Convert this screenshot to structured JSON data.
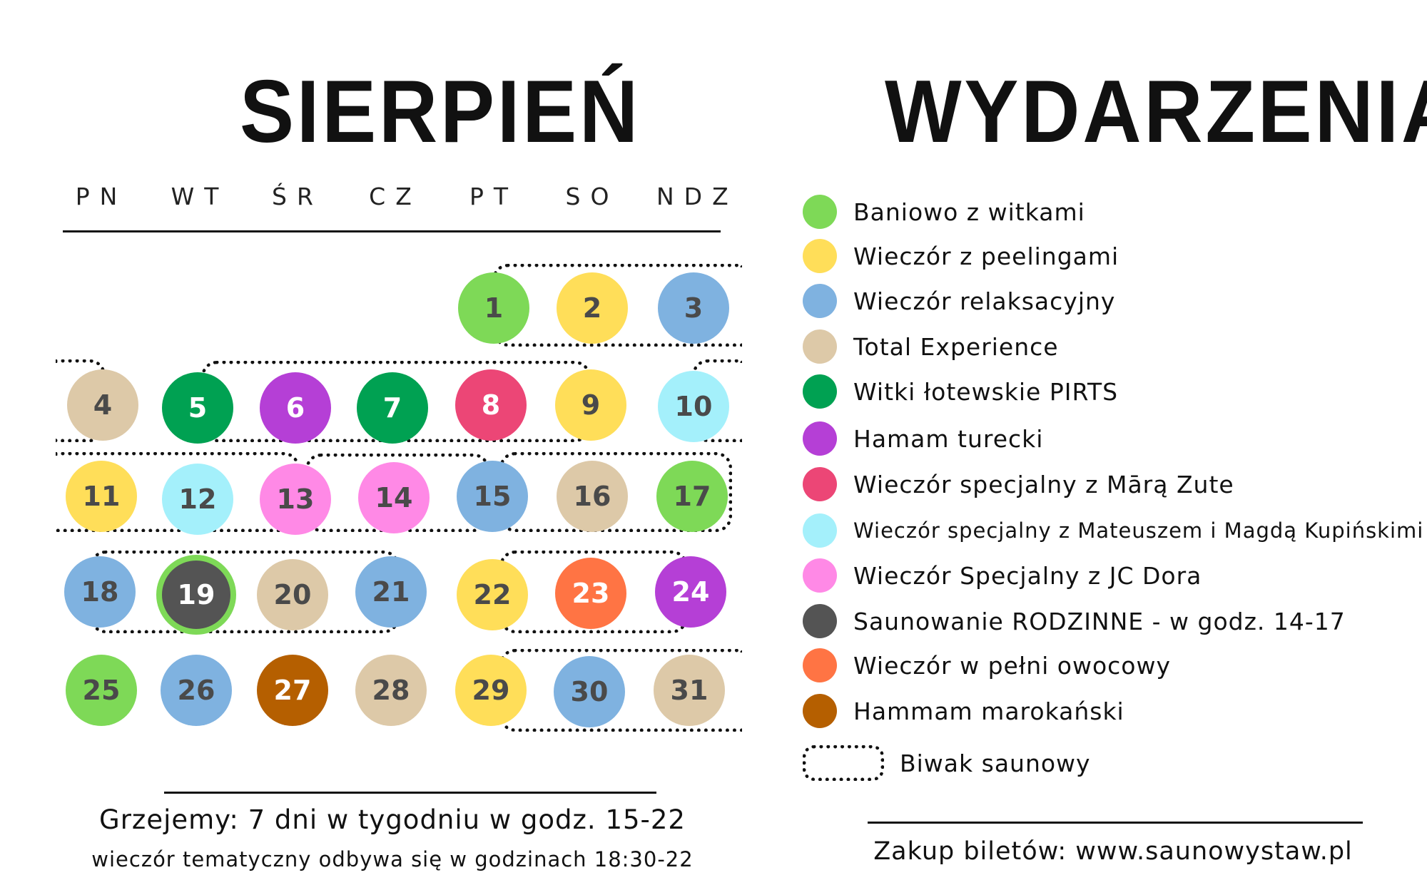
{
  "calendar": {
    "title": "SIERPIEŃ",
    "weekdays": [
      "PN",
      "WT",
      "ŚR",
      "CZ",
      "PT",
      "SO",
      "NDZ"
    ],
    "days": [
      {
        "n": "1",
        "event": "Baniowo z witkami"
      },
      {
        "n": "2",
        "event": "Wieczór z peelingami"
      },
      {
        "n": "3",
        "event": "Wieczór relaksacyjny"
      },
      {
        "n": "4",
        "event": "Total Experience"
      },
      {
        "n": "5",
        "event": "Witki łotewskie PIRTS"
      },
      {
        "n": "6",
        "event": "Hamam turecki"
      },
      {
        "n": "7",
        "event": "Witki łotewskie PIRTS"
      },
      {
        "n": "8",
        "event": "Wieczór specjalny z Mārą Zute"
      },
      {
        "n": "9",
        "event": "Wieczór z peelingami"
      },
      {
        "n": "10",
        "event": "Wieczór specjalny z Mateuszem i Magdą Kupińskimi"
      },
      {
        "n": "11",
        "event": "Wieczór z peelingami"
      },
      {
        "n": "12",
        "event": "Wieczór specjalny z Mateuszem i Magdą Kupińskimi"
      },
      {
        "n": "13",
        "event": "Wieczór Specjalny z JC Dora"
      },
      {
        "n": "14",
        "event": "Wieczór Specjalny z JC Dora"
      },
      {
        "n": "15",
        "event": "Wieczór relaksacyjny"
      },
      {
        "n": "16",
        "event": "Total Experience"
      },
      {
        "n": "17",
        "event": "Baniowo z witkami"
      },
      {
        "n": "18",
        "event": "Wieczór relaksacyjny"
      },
      {
        "n": "19",
        "event": "Saunowanie RODZINNE - w godz. 14-17",
        "ring": "Baniowo z witkami"
      },
      {
        "n": "20",
        "event": "Total Experience"
      },
      {
        "n": "21",
        "event": "Wieczór relaksacyjny"
      },
      {
        "n": "22",
        "event": "Wieczór z peelingami"
      },
      {
        "n": "23",
        "event": "Wieczór w pełni owocowy"
      },
      {
        "n": "24",
        "event": "Hamam turecki"
      },
      {
        "n": "25",
        "event": "Baniowo z witkami"
      },
      {
        "n": "26",
        "event": "Wieczór relaksacyjny"
      },
      {
        "n": "27",
        "event": "Hammam marokański"
      },
      {
        "n": "28",
        "event": "Total Experience"
      },
      {
        "n": "29",
        "event": "Wieczór z peelingami"
      },
      {
        "n": "30",
        "event": "Wieczór relaksacyjny"
      },
      {
        "n": "31",
        "event": "Total Experience"
      }
    ],
    "footer_line1": "Grzejemy: 7 dni w tygodniu w godz. 15-22",
    "footer_line2": "wieczór tematyczny odbywa się w godzinach 18:30-22"
  },
  "events": {
    "title": "WYDARZENIA",
    "items": [
      {
        "label": "Baniowo z witkami",
        "color": "#7ed957",
        "light_text": false
      },
      {
        "label": "Wieczór z peelingami",
        "color": "#ffde59",
        "light_text": false
      },
      {
        "label": "Wieczór relaksacyjny",
        "color": "#7fb2e0",
        "light_text": false
      },
      {
        "label": "Total Experience",
        "color": "#ddc9a8",
        "light_text": false
      },
      {
        "label": "Witki łotewskie PIRTS",
        "color": "#00a152",
        "light_text": true
      },
      {
        "label": "Hamam turecki",
        "color": "#b53fd6",
        "light_text": true
      },
      {
        "label": "Wieczór specjalny z Mārą Zute",
        "color": "#ec4676",
        "light_text": true
      },
      {
        "label": "Wieczór specjalny z Mateuszem i Magdą Kupińskimi",
        "color": "#a4f0fb",
        "light_text": false
      },
      {
        "label": "Wieczór Specjalny z JC Dora",
        "color": "#ff89e6",
        "light_text": false
      },
      {
        "label": "Saunowanie RODZINNE - w godz. 14-17",
        "color": "#545454",
        "light_text": true
      },
      {
        "label": "Wieczór w pełni owocowy",
        "color": "#ff7444",
        "light_text": true
      },
      {
        "label": "Hammam marokański",
        "color": "#b55f00",
        "light_text": true
      }
    ],
    "bivouac_label": "Biwak saunowy",
    "bivouac_spans": [
      {
        "from": "1",
        "to": "3"
      },
      {
        "from": "4",
        "to": "4"
      },
      {
        "from": "5",
        "to": "9"
      },
      {
        "from": "10",
        "to": "10"
      },
      {
        "from": "11",
        "to": "13"
      },
      {
        "from": "14",
        "to": "15"
      },
      {
        "from": "16",
        "to": "17"
      },
      {
        "from": "19",
        "to": "21"
      },
      {
        "from": "23",
        "to": "24"
      },
      {
        "from": "30",
        "to": "31"
      }
    ],
    "footer": "Zakup biletów: www.saunowystaw.pl"
  }
}
